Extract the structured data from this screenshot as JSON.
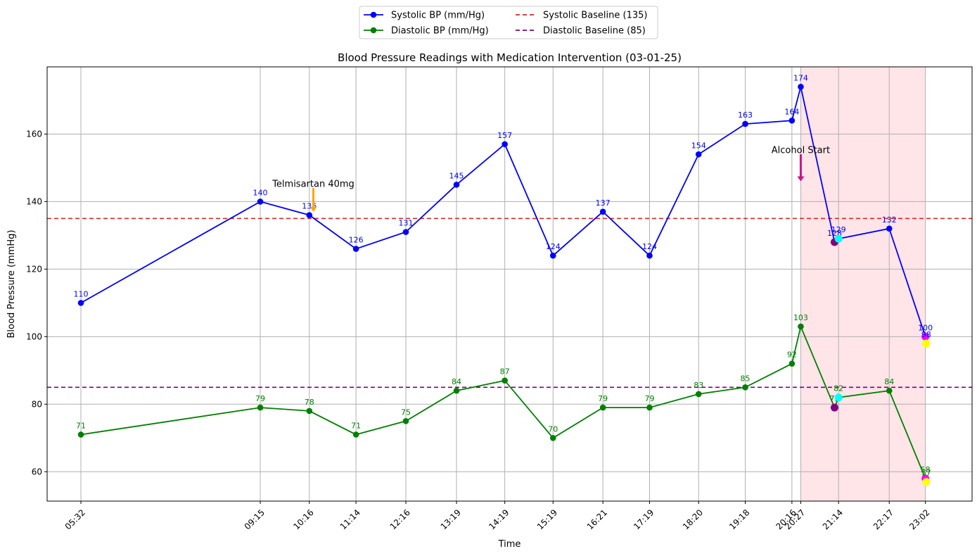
{
  "chart_data": {
    "type": "line",
    "title": "Blood Pressure Readings with Medication Intervention (03-01-25)",
    "xlabel": "Time",
    "ylabel": "Blood Pressure (mmHg)",
    "ylim": [
      51.3,
      179.9
    ],
    "yticks": [
      60,
      80,
      100,
      120,
      140,
      160
    ],
    "x_times": [
      "05:32",
      "09:15",
      "10:16",
      "11:14",
      "12:16",
      "13:19",
      "14:19",
      "15:19",
      "16:21",
      "17:19",
      "18:20",
      "19:18",
      "20:16",
      "20:27",
      "21:09",
      "21:14",
      "22:17",
      "23:02"
    ],
    "x_minutes": [
      332,
      555,
      616,
      674,
      736,
      799,
      859,
      919,
      981,
      1039,
      1100,
      1158,
      1216,
      1227,
      1269,
      1274,
      1337,
      1382
    ],
    "x_tick_labels": [
      "05:32",
      "09:15",
      "10:16",
      "11:14",
      "12:16",
      "13:19",
      "14:19",
      "15:19",
      "16:21",
      "17:19",
      "18:20",
      "19:18",
      "20:16",
      "20:27",
      "21:14",
      "22:17",
      "23:02"
    ],
    "x_tick_minutes": [
      332,
      555,
      616,
      674,
      736,
      799,
      859,
      919,
      981,
      1039,
      1100,
      1158,
      1216,
      1227,
      1274,
      1337,
      1382
    ],
    "xlim": [
      290,
      1440
    ],
    "grid": true,
    "legend_placement": "top-center (above plot)",
    "series": [
      {
        "name": "Systolic BP (mm/Hg)",
        "color": "#0000ff",
        "values": [
          110,
          140,
          136,
          126,
          131,
          145,
          157,
          124,
          137,
          124,
          154,
          163,
          164,
          174,
          128,
          129,
          132,
          100
        ]
      },
      {
        "name": "Diastolic BP (mm/Hg)",
        "color": "#008000",
        "values": [
          71,
          79,
          78,
          71,
          75,
          84,
          87,
          70,
          79,
          79,
          83,
          85,
          92,
          103,
          79,
          82,
          84,
          58
        ]
      }
    ],
    "data_labels": {
      "systolic": [
        "110",
        "140",
        "136",
        "126",
        "131",
        "145",
        "157",
        "124",
        "137",
        "124",
        "154",
        "163",
        "164",
        "174",
        "128",
        "129",
        "132",
        "100"
      ],
      "diastolic": [
        "71",
        "79",
        "78",
        "71",
        "75",
        "84",
        "87",
        "70",
        "79",
        "79",
        "83",
        "85",
        "92",
        "103",
        "79",
        "82",
        "84",
        "58"
      ]
    },
    "baselines": [
      {
        "name": "Systolic Baseline (135)",
        "value": 135,
        "color": "#d62728",
        "style": "dashed"
      },
      {
        "name": "Diastolic Baseline (85)",
        "value": 85,
        "color": "#800080",
        "style": "dashed"
      }
    ],
    "extra_markers": [
      {
        "x_minute": 1269,
        "value": 128,
        "color": "#800080",
        "label": ""
      },
      {
        "x_minute": 1274,
        "value": 129,
        "color": "#00ffff",
        "label": ""
      },
      {
        "x_minute": 1269,
        "value": 79,
        "color": "#800080",
        "label": ""
      },
      {
        "x_minute": 1274,
        "value": 82,
        "color": "#00ffff",
        "label": ""
      },
      {
        "x_minute": 1382,
        "value": 100,
        "color": "#ff00ff",
        "label": ""
      },
      {
        "x_minute": 1383,
        "value": 98,
        "color": "#ffff00",
        "label": "98"
      },
      {
        "x_minute": 1382,
        "value": 58,
        "color": "#ff00ff",
        "label": ""
      },
      {
        "x_minute": 1383,
        "value": 57,
        "color": "#ffff00",
        "label": "57"
      }
    ],
    "annotations": [
      {
        "text": "Telmisartan 40mg",
        "x_minute": 621,
        "value": 145.0,
        "arrow_from": 144,
        "arrow_to": 137,
        "color": "#ffa500"
      },
      {
        "text": "Alcohol Start",
        "x_minute": 1227,
        "value": 155.0,
        "arrow_from": 154,
        "arrow_to": 146,
        "color": "#c71585"
      }
    ],
    "shaded_region": {
      "from_minute": 1227,
      "to_minute": 1382,
      "color": "#ffe4e8"
    }
  }
}
